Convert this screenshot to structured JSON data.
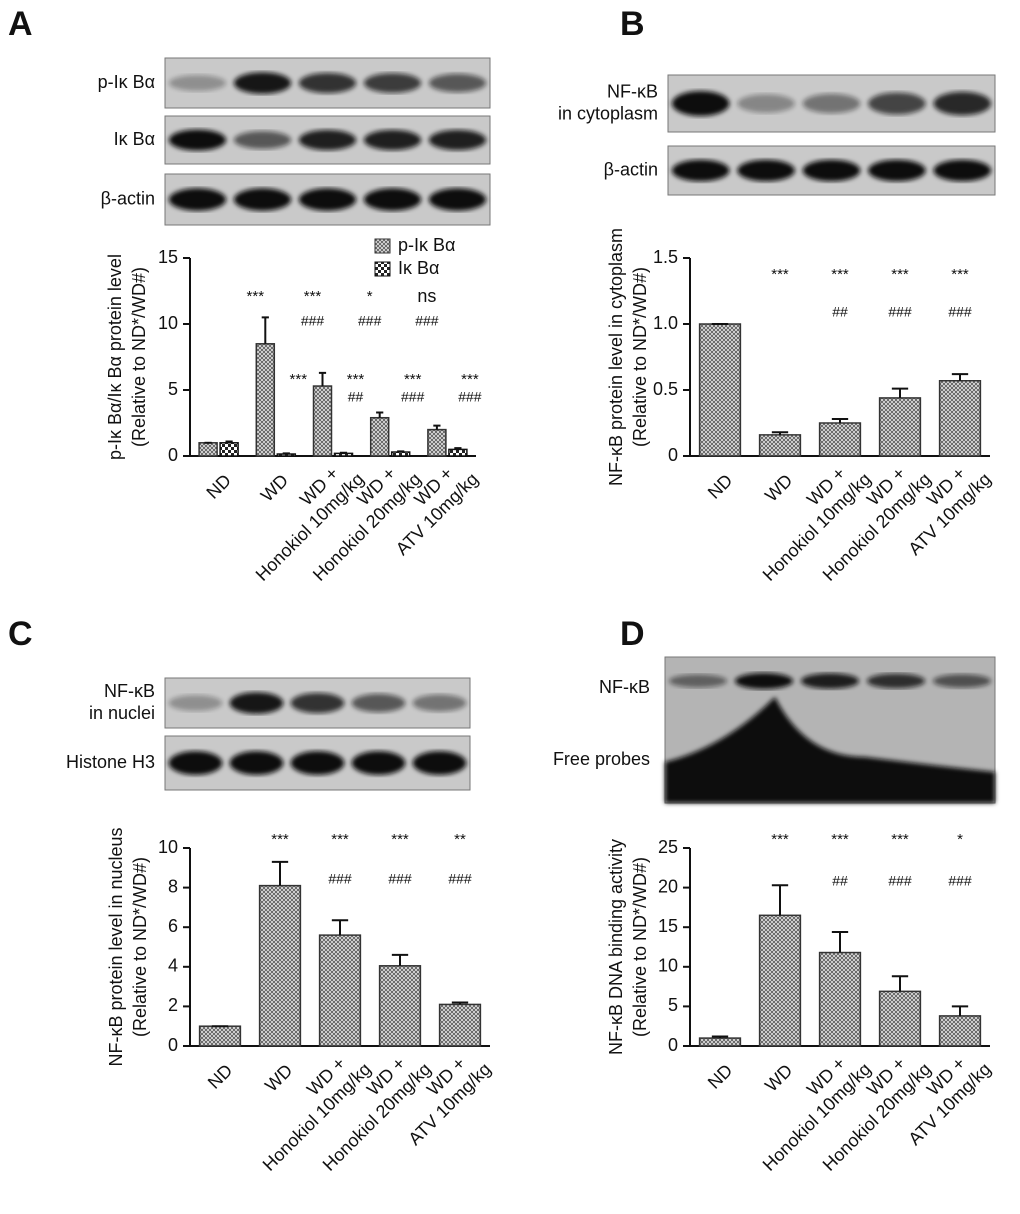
{
  "chart_data": [
    {
      "type": "bar",
      "panel": "A",
      "blot_labels": [
        "p-Iκ Bα",
        "Iκ Bα",
        "β-actin"
      ],
      "ylabel": "p-Iκ Bα/Iκ Bα protein level\n(Relative to ND*/WD#)",
      "categories": [
        "ND",
        "WD",
        "WD +\nHonokiol 10mg/kg",
        "WD +\nHonokiol 20mg/kg",
        "WD +\nATV 10mg/kg"
      ],
      "series": [
        {
          "name": "p-Iκ Bα",
          "color": "#333333",
          "values": [
            1,
            8.5,
            5.3,
            2.9,
            2.0
          ],
          "errors": [
            0,
            2.0,
            1.0,
            0.4,
            0.3
          ],
          "star_labels": [
            null,
            "***",
            "***",
            "*",
            "ns"
          ],
          "hash_labels": [
            null,
            null,
            "###",
            "###",
            "###"
          ]
        },
        {
          "name": "Iκ Bα",
          "color": "#111111",
          "values": [
            1,
            0.15,
            0.2,
            0.3,
            0.5
          ],
          "errors": [
            0.1,
            0.05,
            0.05,
            0.05,
            0.1
          ],
          "star_labels": [
            null,
            "***",
            "***",
            "***",
            "***"
          ],
          "hash_labels": [
            null,
            null,
            "##",
            "###",
            "###"
          ]
        }
      ],
      "ylim": [
        0,
        15
      ],
      "yticks": [
        0,
        5,
        10,
        15
      ]
    },
    {
      "type": "bar",
      "panel": "B",
      "blot_labels": [
        "NF-κB\nin cytoplasm",
        "β-actin"
      ],
      "ylabel": "NF-κB protein level in cytoplasm\n(Relative to ND*/WD#)",
      "categories": [
        "ND",
        "WD",
        "WD +\nHonokiol 10mg/kg",
        "WD +\nHonokiol 20mg/kg",
        "WD +\nATV 10mg/kg"
      ],
      "series": [
        {
          "color": "#333333",
          "values": [
            1,
            0.16,
            0.25,
            0.44,
            0.57
          ],
          "errors": [
            0,
            0.02,
            0.03,
            0.07,
            0.05
          ],
          "star_labels": [
            null,
            "***",
            "***",
            "***",
            "***"
          ],
          "hash_labels": [
            null,
            null,
            "##",
            "###",
            "###"
          ]
        }
      ],
      "ylim": [
        0,
        1.5
      ],
      "yticks": [
        0,
        0.5,
        {
          "value": 1,
          "label": "1.0"
        },
        1.5
      ]
    },
    {
      "type": "bar",
      "panel": "C",
      "blot_labels": [
        "NF-κB\nin nuclei",
        "Histone H3"
      ],
      "ylabel": "NF-κB protein level in nucleus\n(Relative to ND*/WD#)",
      "categories": [
        "ND",
        "WD",
        "WD +\nHonokiol 10mg/kg",
        "WD +\nHonokiol 20mg/kg",
        "WD +\nATV 10mg/kg"
      ],
      "series": [
        {
          "color": "#333333",
          "values": [
            1,
            8.1,
            5.6,
            4.05,
            2.1
          ],
          "errors": [
            0,
            1.2,
            0.75,
            0.55,
            0.1
          ],
          "star_labels": [
            null,
            "***",
            "***",
            "***",
            "**"
          ],
          "hash_labels": [
            null,
            null,
            "###",
            "###",
            "###"
          ]
        }
      ],
      "ylim": [
        0,
        10
      ],
      "yticks": [
        0,
        2,
        4,
        6,
        8,
        10
      ]
    },
    {
      "type": "bar",
      "panel": "D",
      "blot_labels": [
        "NF-κB",
        "Free probes"
      ],
      "ylabel": "NF-κB DNA binding activity\n(Relative to ND*/WD#)",
      "categories": [
        "ND",
        "WD",
        "WD +\nHonokiol 10mg/kg",
        "WD +\nHonokiol 20mg/kg",
        "WD +\nATV 10mg/kg"
      ],
      "series": [
        {
          "color": "#333333",
          "values": [
            1,
            16.5,
            11.8,
            6.9,
            3.8
          ],
          "errors": [
            0.2,
            3.8,
            2.6,
            1.9,
            1.2
          ],
          "star_labels": [
            null,
            "***",
            "***",
            "***",
            "*"
          ],
          "hash_labels": [
            null,
            null,
            "##",
            "###",
            "###"
          ]
        }
      ],
      "ylim": [
        0,
        25
      ],
      "yticks": [
        0,
        5,
        10,
        15,
        20,
        25
      ]
    }
  ]
}
